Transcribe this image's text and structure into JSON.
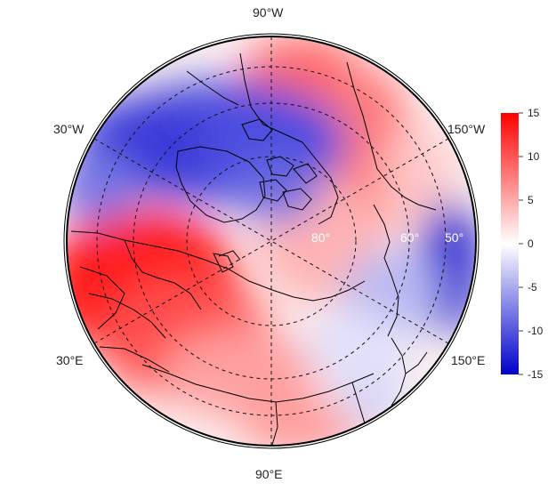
{
  "map": {
    "projection": "north-polar-stereographic",
    "longitude_labels": {
      "top": "90°W",
      "bottom": "90°E",
      "upper_left": "30°W",
      "lower_left": "30°E",
      "upper_right": "150°W",
      "lower_right": "150°E"
    },
    "latitude_labels": [
      "80°",
      "60°",
      "50°"
    ],
    "field_description_colors": {
      "negative": "#0000cc",
      "zero": "#ffffff",
      "positive": "#ff0000"
    }
  },
  "colorbar": {
    "min": -15,
    "max": 15,
    "ticks": [
      "15",
      "10",
      "5",
      "0",
      "-5",
      "-10",
      "-15"
    ]
  }
}
